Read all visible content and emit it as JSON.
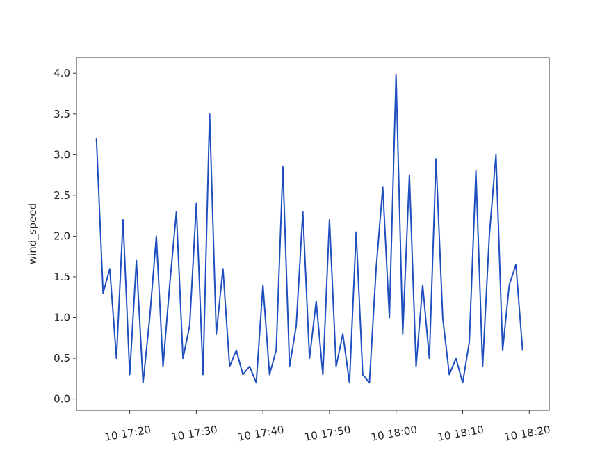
{
  "chart_data": {
    "type": "line",
    "ylabel": "wind_speed",
    "x": [
      "10 17:15",
      "10 17:16",
      "10 17:17",
      "10 17:18",
      "10 17:19",
      "10 17:20",
      "10 17:21",
      "10 17:22",
      "10 17:23",
      "10 17:24",
      "10 17:25",
      "10 17:26",
      "10 17:27",
      "10 17:28",
      "10 17:29",
      "10 17:30",
      "10 17:31",
      "10 17:32",
      "10 17:33",
      "10 17:34",
      "10 17:35",
      "10 17:36",
      "10 17:37",
      "10 17:38",
      "10 17:39",
      "10 17:40",
      "10 17:41",
      "10 17:42",
      "10 17:43",
      "10 17:44",
      "10 17:45",
      "10 17:46",
      "10 17:47",
      "10 17:48",
      "10 17:49",
      "10 17:50",
      "10 17:51",
      "10 17:52",
      "10 17:53",
      "10 17:54",
      "10 17:55",
      "10 17:56",
      "10 17:57",
      "10 17:58",
      "10 17:59",
      "10 18:00",
      "10 18:01",
      "10 18:02",
      "10 18:03",
      "10 18:04",
      "10 18:05",
      "10 18:06",
      "10 18:07",
      "10 18:08",
      "10 18:09",
      "10 18:10",
      "10 18:11",
      "10 18:12",
      "10 18:13",
      "10 18:14",
      "10 18:15",
      "10 18:16",
      "10 18:17",
      "10 18:18",
      "10 18:19"
    ],
    "series": [
      {
        "name": "wind_speed",
        "color": "#1f4fbf",
        "values": [
          3.2,
          1.3,
          1.6,
          0.5,
          2.2,
          0.3,
          1.7,
          0.2,
          1.0,
          2.0,
          0.4,
          1.4,
          2.3,
          0.5,
          0.9,
          2.4,
          0.3,
          3.5,
          0.8,
          1.6,
          0.4,
          0.6,
          0.3,
          0.4,
          0.2,
          1.4,
          0.3,
          0.6,
          2.85,
          0.4,
          0.9,
          2.3,
          0.5,
          1.2,
          0.3,
          2.2,
          0.4,
          0.8,
          0.2,
          2.05,
          0.3,
          0.2,
          1.6,
          2.6,
          1.0,
          3.98,
          0.8,
          2.75,
          0.4,
          1.4,
          0.5,
          2.95,
          1.0,
          0.3,
          0.5,
          0.2,
          0.7,
          2.8,
          0.4,
          2.0,
          3.0,
          0.6,
          1.4,
          1.65,
          0.6
        ]
      }
    ],
    "xlim": [
      "10 17:12",
      "10 18:23"
    ],
    "xticks": [
      "10 17:20",
      "10 17:30",
      "10 17:40",
      "10 17:50",
      "10 18:00",
      "10 18:10",
      "10 18:20"
    ],
    "ylim": [
      -0.14,
      4.19
    ],
    "yticks": [
      {
        "value": 0,
        "label": "0.0"
      },
      {
        "value": 0.5,
        "label": "0.5"
      },
      {
        "value": 1,
        "label": "1.0"
      },
      {
        "value": 1.5,
        "label": "1.5"
      },
      {
        "value": 2,
        "label": "2.0"
      },
      {
        "value": 2.5,
        "label": "2.5"
      },
      {
        "value": 3,
        "label": "3.0"
      },
      {
        "value": 3.5,
        "label": "3.5"
      },
      {
        "value": 4,
        "label": "4.0"
      }
    ]
  }
}
